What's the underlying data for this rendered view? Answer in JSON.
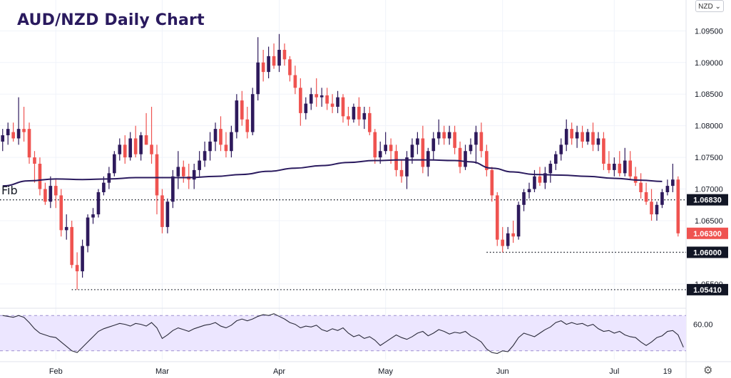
{
  "title": "AUD/NZD Daily Chart",
  "currency_selector": {
    "value": "NZD",
    "icon": "chevron-down-icon"
  },
  "settings_icon": "gear-icon",
  "fib_label": "Fib",
  "colors": {
    "up": "#2e1a5c",
    "down": "#ef5350",
    "ma": "#2a1a5e",
    "rsi_line": "#2b2b3b",
    "rsi_band": "#ece6ff",
    "badge_dark": "#121625",
    "badge_price": "#ef5350"
  },
  "chart_data": {
    "type": "candlestick",
    "title": "AUD/NZD Daily Chart",
    "y_axis": {
      "ylim": [
        1.0515,
        1.0965
      ],
      "ticks": [
        "1.09500",
        "1.09000",
        "1.08500",
        "1.08000",
        "1.07500",
        "1.07000",
        "1.06500",
        "1.05500"
      ]
    },
    "x_axis": {
      "labels": [
        {
          "label": "Feb",
          "index": 10
        },
        {
          "label": "Mar",
          "index": 30
        },
        {
          "label": "Apr",
          "index": 52
        },
        {
          "label": "May",
          "index": 72
        },
        {
          "label": "Jun",
          "index": 94
        },
        {
          "label": "Jul",
          "index": 115
        },
        {
          "label": "19",
          "index": 125
        }
      ],
      "total_slots": 129
    },
    "levels": [
      {
        "label": "1.06830",
        "value": 1.0683,
        "style": "dotted",
        "from_index": 0
      },
      {
        "label": "1.06000",
        "value": 1.06,
        "style": "dotted",
        "from_index": 91
      },
      {
        "label": "1.05410",
        "value": 1.0541,
        "style": "dotted",
        "from_index": 13
      }
    ],
    "last_price": {
      "label": "1.06300",
      "value": 1.063
    },
    "candles": [
      [
        1.0775,
        1.0795,
        1.076,
        1.0785
      ],
      [
        1.0785,
        1.0805,
        1.077,
        1.0795
      ],
      [
        1.079,
        1.0805,
        1.0775,
        1.078
      ],
      [
        1.078,
        1.0845,
        1.077,
        1.0795
      ],
      [
        1.0795,
        1.083,
        1.0775,
        1.079
      ],
      [
        1.0795,
        1.0805,
        1.074,
        1.075
      ],
      [
        1.075,
        1.076,
        1.071,
        1.074
      ],
      [
        1.074,
        1.075,
        1.069,
        1.07
      ],
      [
        1.07,
        1.071,
        1.0675,
        1.068
      ],
      [
        1.068,
        1.072,
        1.067,
        1.0705
      ],
      [
        1.0705,
        1.0715,
        1.067,
        1.069
      ],
      [
        1.069,
        1.07,
        1.0625,
        1.0635
      ],
      [
        1.0635,
        1.066,
        1.062,
        1.064
      ],
      [
        1.064,
        1.065,
        1.0575,
        1.058
      ],
      [
        1.058,
        1.06,
        1.0541,
        1.057
      ],
      [
        1.057,
        1.062,
        1.056,
        1.061
      ],
      [
        1.061,
        1.066,
        1.06,
        1.0655
      ],
      [
        1.0655,
        1.067,
        1.0645,
        1.066
      ],
      [
        1.066,
        1.07,
        1.0655,
        1.0695
      ],
      [
        1.0695,
        1.072,
        1.069,
        1.071
      ],
      [
        1.071,
        1.0735,
        1.07,
        1.0725
      ],
      [
        1.0725,
        1.076,
        1.072,
        1.0755
      ],
      [
        1.0755,
        1.078,
        1.0745,
        1.077
      ],
      [
        1.077,
        1.0785,
        1.074,
        1.075
      ],
      [
        1.075,
        1.079,
        1.0745,
        1.078
      ],
      [
        1.078,
        1.08,
        1.075,
        1.0755
      ],
      [
        1.0755,
        1.079,
        1.0745,
        1.0785
      ],
      [
        1.0785,
        1.082,
        1.077,
        1.077
      ],
      [
        1.077,
        1.083,
        1.074,
        1.0755
      ],
      [
        1.0755,
        1.077,
        1.066,
        1.069
      ],
      [
        1.069,
        1.07,
        1.063,
        1.064
      ],
      [
        1.064,
        1.0685,
        1.063,
        1.068
      ],
      [
        1.068,
        1.073,
        1.067,
        1.072
      ],
      [
        1.072,
        1.076,
        1.07,
        1.0735
      ],
      [
        1.0735,
        1.0745,
        1.071,
        1.072
      ],
      [
        1.072,
        1.074,
        1.07,
        1.0715
      ],
      [
        1.0715,
        1.074,
        1.07,
        1.073
      ],
      [
        1.073,
        1.076,
        1.072,
        1.0745
      ],
      [
        1.0745,
        1.0775,
        1.0735,
        1.076
      ],
      [
        1.076,
        1.079,
        1.0745,
        1.0775
      ],
      [
        1.0775,
        1.0805,
        1.076,
        1.0795
      ],
      [
        1.0795,
        1.0815,
        1.076,
        1.077
      ],
      [
        1.077,
        1.079,
        1.075,
        1.076
      ],
      [
        1.076,
        1.08,
        1.075,
        1.079
      ],
      [
        1.079,
        1.085,
        1.078,
        1.084
      ],
      [
        1.084,
        1.0855,
        1.08,
        1.081
      ],
      [
        1.081,
        1.083,
        1.078,
        1.079
      ],
      [
        1.079,
        1.086,
        1.0785,
        1.085
      ],
      [
        1.085,
        1.094,
        1.084,
        1.09
      ],
      [
        1.09,
        1.092,
        1.087,
        1.0885
      ],
      [
        1.0885,
        1.0925,
        1.0875,
        1.091
      ],
      [
        1.091,
        1.093,
        1.089,
        1.0895
      ],
      [
        1.0895,
        1.0945,
        1.0885,
        1.092
      ],
      [
        1.092,
        1.093,
        1.0895,
        1.0905
      ],
      [
        1.0905,
        1.091,
        1.087,
        1.088
      ],
      [
        1.088,
        1.0895,
        1.085,
        1.086
      ],
      [
        1.086,
        1.0875,
        1.08,
        1.082
      ],
      [
        1.082,
        1.0845,
        1.081,
        1.0835
      ],
      [
        1.0835,
        1.086,
        1.0825,
        1.085
      ],
      [
        1.085,
        1.0875,
        1.083,
        1.0845
      ],
      [
        1.0845,
        1.086,
        1.083,
        1.0848
      ],
      [
        1.0848,
        1.086,
        1.0825,
        1.0835
      ],
      [
        1.0835,
        1.085,
        1.082,
        1.083
      ],
      [
        1.083,
        1.0855,
        1.082,
        1.0845
      ],
      [
        1.0845,
        1.085,
        1.0805,
        1.0815
      ],
      [
        1.0815,
        1.083,
        1.08,
        1.081
      ],
      [
        1.081,
        1.0835,
        1.0805,
        1.083
      ],
      [
        1.083,
        1.0845,
        1.08,
        1.081
      ],
      [
        1.081,
        1.083,
        1.0795,
        1.082
      ],
      [
        1.082,
        1.083,
        1.0785,
        1.079
      ],
      [
        1.079,
        1.0795,
        1.074,
        1.075
      ],
      [
        1.075,
        1.0775,
        1.074,
        1.076
      ],
      [
        1.076,
        1.079,
        1.0755,
        1.077
      ],
      [
        1.077,
        1.078,
        1.074,
        1.076
      ],
      [
        1.076,
        1.077,
        1.072,
        1.073
      ],
      [
        1.073,
        1.0745,
        1.071,
        1.072
      ],
      [
        1.072,
        1.076,
        1.07,
        1.075
      ],
      [
        1.075,
        1.078,
        1.074,
        1.077
      ],
      [
        1.077,
        1.079,
        1.0755,
        1.078
      ],
      [
        1.078,
        1.08,
        1.0725,
        1.0735
      ],
      [
        1.0735,
        1.0765,
        1.072,
        1.076
      ],
      [
        1.076,
        1.079,
        1.0745,
        1.078
      ],
      [
        1.078,
        1.081,
        1.077,
        1.079
      ],
      [
        1.079,
        1.08,
        1.077,
        1.078
      ],
      [
        1.078,
        1.08,
        1.077,
        1.079
      ],
      [
        1.079,
        1.08,
        1.0755,
        1.0765
      ],
      [
        1.0765,
        1.0775,
        1.0725,
        1.0735
      ],
      [
        1.0735,
        1.077,
        1.073,
        1.076
      ],
      [
        1.076,
        1.078,
        1.0755,
        1.077
      ],
      [
        1.077,
        1.08,
        1.074,
        1.079
      ],
      [
        1.079,
        1.0805,
        1.075,
        1.076
      ],
      [
        1.076,
        1.077,
        1.072,
        1.073
      ],
      [
        1.073,
        1.0735,
        1.068,
        1.069
      ],
      [
        1.069,
        1.0695,
        1.061,
        1.062
      ],
      [
        1.062,
        1.064,
        1.06,
        1.061
      ],
      [
        1.061,
        1.064,
        1.0605,
        1.063
      ],
      [
        1.063,
        1.065,
        1.0615,
        1.0625
      ],
      [
        1.0625,
        1.068,
        1.062,
        1.0675
      ],
      [
        1.0675,
        1.07,
        1.0665,
        1.0695
      ],
      [
        1.0695,
        1.071,
        1.0685,
        1.07
      ],
      [
        1.07,
        1.073,
        1.0695,
        1.072
      ],
      [
        1.072,
        1.0735,
        1.0705,
        1.071
      ],
      [
        1.071,
        1.0735,
        1.07,
        1.0725
      ],
      [
        1.0725,
        1.0745,
        1.071,
        1.074
      ],
      [
        1.074,
        1.076,
        1.073,
        1.0755
      ],
      [
        1.0755,
        1.078,
        1.0745,
        1.077
      ],
      [
        1.077,
        1.081,
        1.076,
        1.0795
      ],
      [
        1.0795,
        1.0805,
        1.077,
        1.078
      ],
      [
        1.078,
        1.08,
        1.0765,
        1.079
      ],
      [
        1.079,
        1.08,
        1.0765,
        1.0775
      ],
      [
        1.0775,
        1.0795,
        1.077,
        1.079
      ],
      [
        1.079,
        1.0805,
        1.076,
        1.077
      ],
      [
        1.077,
        1.079,
        1.076,
        1.078
      ],
      [
        1.078,
        1.079,
        1.073,
        1.074
      ],
      [
        1.074,
        1.076,
        1.0725,
        1.073
      ],
      [
        1.073,
        1.075,
        1.072,
        1.074
      ],
      [
        1.074,
        1.076,
        1.072,
        1.0725
      ],
      [
        1.0725,
        1.0765,
        1.072,
        1.0745
      ],
      [
        1.0745,
        1.076,
        1.0715,
        1.072
      ],
      [
        1.072,
        1.0735,
        1.0705,
        1.071
      ],
      [
        1.071,
        1.0725,
        1.0685,
        1.0695
      ],
      [
        1.0695,
        1.071,
        1.0675,
        1.068
      ],
      [
        1.068,
        1.07,
        1.065,
        1.066
      ],
      [
        1.066,
        1.068,
        1.065,
        1.0675
      ],
      [
        1.0675,
        1.07,
        1.067,
        1.0695
      ],
      [
        1.0695,
        1.0715,
        1.069,
        1.0705
      ],
      [
        1.0705,
        1.074,
        1.0695,
        1.0715
      ],
      [
        1.0715,
        1.072,
        1.0625,
        1.063
      ]
    ],
    "moving_average": [
      [
        0,
        1.0705
      ],
      [
        5,
        1.0713
      ],
      [
        10,
        1.0716
      ],
      [
        15,
        1.0715
      ],
      [
        20,
        1.0716
      ],
      [
        25,
        1.0718
      ],
      [
        30,
        1.0718
      ],
      [
        35,
        1.0718
      ],
      [
        40,
        1.072
      ],
      [
        45,
        1.0723
      ],
      [
        50,
        1.0728
      ],
      [
        55,
        1.0733
      ],
      [
        60,
        1.0737
      ],
      [
        65,
        1.0742
      ],
      [
        70,
        1.0745
      ],
      [
        75,
        1.0746
      ],
      [
        80,
        1.0746
      ],
      [
        85,
        1.0745
      ],
      [
        88,
        1.0743
      ],
      [
        92,
        1.0733
      ],
      [
        96,
        1.0727
      ],
      [
        100,
        1.0723
      ],
      [
        105,
        1.0722
      ],
      [
        110,
        1.072
      ],
      [
        115,
        1.0717
      ],
      [
        120,
        1.0714
      ],
      [
        124,
        1.0712
      ]
    ],
    "rsi": {
      "tick_label": "60.00",
      "level": 60,
      "ylim": [
        25,
        75
      ],
      "band": [
        30,
        70
      ],
      "values": [
        70,
        69,
        68,
        70,
        68,
        62,
        55,
        50,
        48,
        46,
        45,
        40,
        35,
        30,
        28,
        34,
        40,
        46,
        52,
        55,
        57,
        59,
        61,
        60,
        58,
        61,
        60,
        58,
        62,
        56,
        44,
        48,
        53,
        56,
        54,
        52,
        55,
        57,
        59,
        60,
        62,
        58,
        56,
        59,
        64,
        66,
        64,
        66,
        69,
        71,
        70,
        72,
        69,
        66,
        62,
        60,
        56,
        58,
        57,
        59,
        54,
        52,
        55,
        53,
        56,
        50,
        46,
        48,
        44,
        46,
        42,
        36,
        40,
        44,
        48,
        45,
        43,
        46,
        50,
        52,
        47,
        50,
        54,
        52,
        49,
        51,
        50,
        52,
        47,
        44,
        40,
        32,
        28,
        27,
        30,
        29,
        36,
        45,
        50,
        48,
        46,
        50,
        54,
        57,
        62,
        64,
        60,
        62,
        60,
        61,
        58,
        60,
        55,
        52,
        53,
        50,
        52,
        48,
        46,
        45,
        40,
        36,
        40,
        45,
        47,
        52,
        53,
        48,
        34
      ]
    },
    "legend": "none",
    "grid": true
  }
}
